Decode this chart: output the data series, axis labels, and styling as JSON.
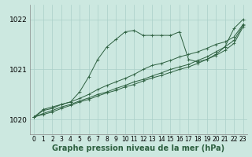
{
  "title": "Graphe pression niveau de la mer (hPa)",
  "bg_color": "#cce8e0",
  "grid_color": "#aacfc8",
  "line_color": "#2d6040",
  "ylim": [
    1019.7,
    1022.3
  ],
  "yticks": [
    1020,
    1021,
    1022
  ],
  "xlim": [
    -0.5,
    23.5
  ],
  "xticks": [
    0,
    1,
    2,
    3,
    4,
    5,
    6,
    7,
    8,
    9,
    10,
    11,
    12,
    13,
    14,
    15,
    16,
    17,
    18,
    19,
    20,
    21,
    22,
    23
  ],
  "series1": [
    1020.05,
    1020.2,
    1020.25,
    1020.3,
    1020.35,
    1020.55,
    1020.85,
    1021.2,
    1021.45,
    1021.6,
    1021.75,
    1021.78,
    1021.68,
    1021.68,
    1021.68,
    1021.68,
    1021.75,
    1021.2,
    1021.15,
    1021.2,
    1021.3,
    1021.45,
    1021.82,
    1022.0
  ],
  "series2": [
    1020.05,
    1020.18,
    1020.22,
    1020.3,
    1020.35,
    1020.42,
    1020.5,
    1020.6,
    1020.68,
    1020.75,
    1020.82,
    1020.9,
    1021.0,
    1021.08,
    1021.12,
    1021.18,
    1021.25,
    1021.3,
    1021.35,
    1021.42,
    1021.5,
    1021.55,
    1021.65,
    1021.9
  ],
  "series3": [
    1020.05,
    1020.12,
    1020.18,
    1020.25,
    1020.3,
    1020.37,
    1020.43,
    1020.5,
    1020.55,
    1020.62,
    1020.68,
    1020.75,
    1020.8,
    1020.87,
    1020.93,
    1021.0,
    1021.05,
    1021.1,
    1021.18,
    1021.25,
    1021.35,
    1021.45,
    1021.58,
    1021.88
  ],
  "series4": [
    1020.05,
    1020.1,
    1020.15,
    1020.22,
    1020.28,
    1020.35,
    1020.4,
    1020.47,
    1020.53,
    1020.58,
    1020.65,
    1020.7,
    1020.77,
    1020.83,
    1020.88,
    1020.94,
    1021.0,
    1021.05,
    1021.12,
    1021.2,
    1021.28,
    1021.38,
    1021.52,
    1021.85
  ],
  "xlabel_fontsize": 5.5,
  "ylabel_fontsize": 6.5,
  "title_fontsize": 7.0
}
